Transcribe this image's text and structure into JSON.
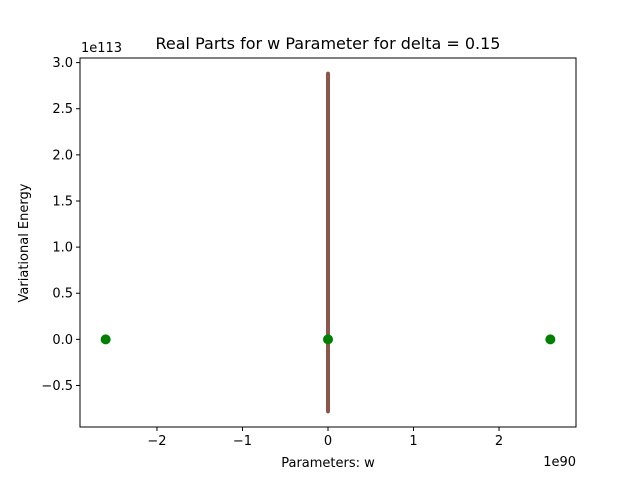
{
  "chart_data": {
    "type": "scatter",
    "title": "Real Parts for w Parameter for delta = 0.15",
    "xlabel": "Parameters: w",
    "ylabel": "Variational Energy",
    "x_offset_label": "1e90",
    "y_offset_label": "1e113",
    "xlim": [
      -2.9,
      2.9
    ],
    "ylim": [
      -0.95,
      3.05
    ],
    "x_ticks": [
      {
        "value": -2,
        "label": "−2"
      },
      {
        "value": -1,
        "label": "−1"
      },
      {
        "value": 0,
        "label": "0"
      },
      {
        "value": 1,
        "label": "1"
      },
      {
        "value": 2,
        "label": "2"
      }
    ],
    "y_ticks": [
      {
        "value": -0.5,
        "label": "−0.5"
      },
      {
        "value": 0.0,
        "label": "0.0"
      },
      {
        "value": 0.5,
        "label": "0.5"
      },
      {
        "value": 1.0,
        "label": "1.0"
      },
      {
        "value": 1.5,
        "label": "1.5"
      },
      {
        "value": 2.0,
        "label": "2.0"
      },
      {
        "value": 2.5,
        "label": "2.5"
      },
      {
        "value": 3.0,
        "label": "3.0"
      }
    ],
    "grid": false,
    "series": [
      {
        "color": "#8c564b",
        "marker": "vertical-band",
        "points": [
          {
            "x": 0,
            "y": -0.78
          },
          {
            "x": 0,
            "y": 2.88
          }
        ]
      },
      {
        "color": "#008000",
        "marker": "circle",
        "points": [
          {
            "x": -2.6,
            "y": 0
          },
          {
            "x": 0,
            "y": 0
          },
          {
            "x": 2.6,
            "y": 0
          }
        ]
      }
    ]
  }
}
